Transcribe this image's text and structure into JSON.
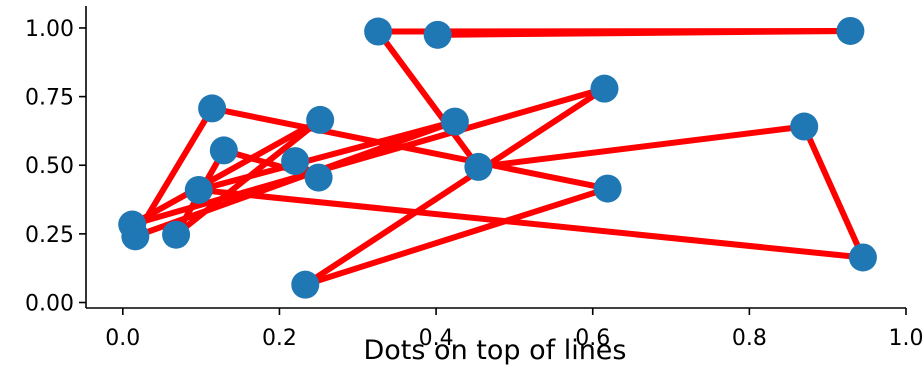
{
  "colors": {
    "dots": "#1f77b4",
    "line": "#ff0000",
    "axis": "#000000"
  },
  "chart_data": {
    "type": "scatter",
    "title": "",
    "xlabel": "Dots on top of lines",
    "ylabel": "",
    "xlim": [
      -0.047,
      1.0
    ],
    "ylim": [
      -0.02,
      1.08
    ],
    "grid": false,
    "xticks": [
      0.0,
      0.2,
      0.4,
      0.6,
      0.8,
      1.0
    ],
    "xtick_labels": [
      "0.0",
      "0.2",
      "0.4",
      "0.6",
      "0.8",
      "1.0"
    ],
    "yticks": [
      0.0,
      0.25,
      0.5,
      0.75,
      1.0
    ],
    "ytick_labels": [
      "0.00",
      "0.25",
      "0.50",
      "0.75",
      "1.00"
    ],
    "series": [
      {
        "x": [
          0.402,
          0.929,
          0.326,
          0.454,
          0.87,
          0.945,
          0.097,
          0.424,
          0.016,
          0.114,
          0.619,
          0.233,
          0.615,
          0.012,
          0.252,
          0.068,
          0.129,
          0.25,
          0.22
        ],
        "y": [
          0.975,
          0.989,
          0.987,
          0.494,
          0.641,
          0.164,
          0.41,
          0.659,
          0.241,
          0.707,
          0.415,
          0.065,
          0.779,
          0.284,
          0.665,
          0.247,
          0.554,
          0.455,
          0.515
        ]
      }
    ]
  }
}
